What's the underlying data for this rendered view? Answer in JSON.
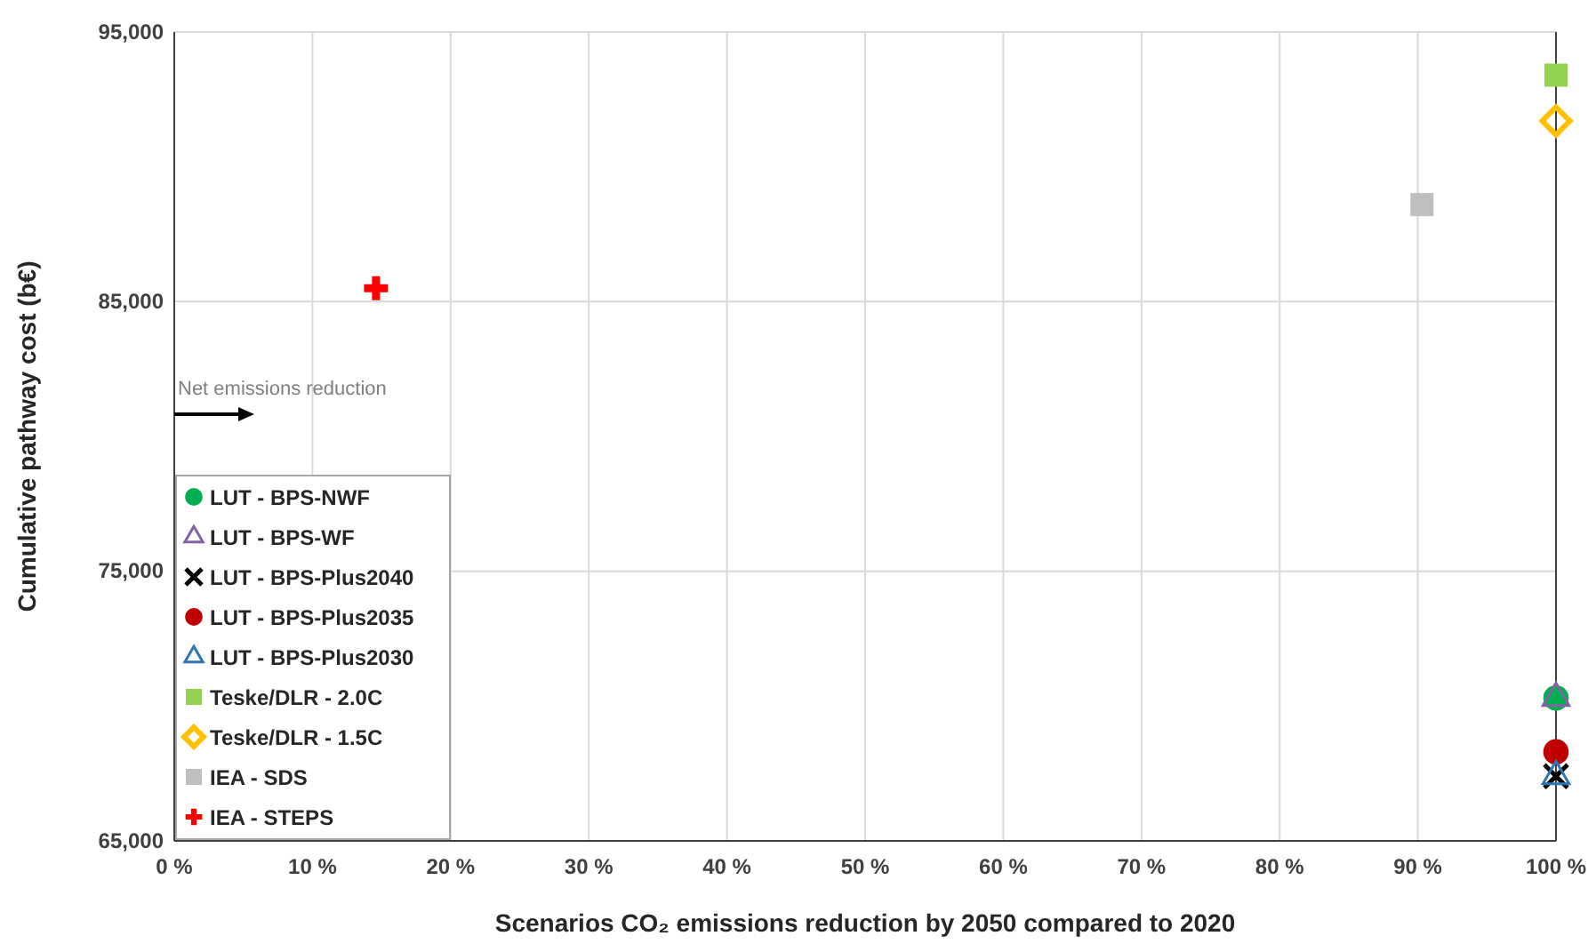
{
  "chart_data": {
    "type": "scatter",
    "xlabel": "Scenarios CO₂ emissions reduction by 2050 compared to 2020",
    "ylabel": "Cumulative pathway cost (b€)",
    "xlim": [
      0,
      100
    ],
    "xticks": [
      {
        "value": 0,
        "label": "0 %"
      },
      {
        "value": 10,
        "label": "10 %"
      },
      {
        "value": 20,
        "label": "20 %"
      },
      {
        "value": 30,
        "label": "30 %"
      },
      {
        "value": 40,
        "label": "40 %"
      },
      {
        "value": 50,
        "label": "50 %"
      },
      {
        "value": 60,
        "label": "60 %"
      },
      {
        "value": 70,
        "label": "70 %"
      },
      {
        "value": 80,
        "label": "80 %"
      },
      {
        "value": 90,
        "label": "90 %"
      },
      {
        "value": 100,
        "label": "100 %"
      }
    ],
    "ylim": [
      65000,
      95000
    ],
    "yticks": [
      {
        "value": 65000,
        "label": "65,000"
      },
      {
        "value": 75000,
        "label": "75,000"
      },
      {
        "value": 85000,
        "label": "85,000"
      },
      {
        "value": 95000,
        "label": "95,000"
      }
    ],
    "grid": true,
    "legend": "bottom left",
    "annotations": [
      "Net emissions reduction"
    ],
    "series": [
      {
        "name": "LUT - BPS-NWF",
        "color": "#00b050",
        "marker": "circle",
        "x": [
          100
        ],
        "values": [
          70300
        ]
      },
      {
        "name": "LUT - BPS-WF",
        "color": "#8064a2",
        "marker": "triangle",
        "x": [
          100
        ],
        "values": [
          70300
        ]
      },
      {
        "name": "LUT - BPS-Plus2040",
        "color": "#000000",
        "marker": "cross",
        "x": [
          100
        ],
        "values": [
          67400
        ]
      },
      {
        "name": "LUT - BPS-Plus2035",
        "color": "#c00000",
        "marker": "circle",
        "x": [
          100
        ],
        "values": [
          68300
        ]
      },
      {
        "name": "LUT - BPS-Plus2030",
        "color": "#2e75b6",
        "marker": "triangle",
        "x": [
          100
        ],
        "values": [
          67400
        ]
      },
      {
        "name": "Teske/DLR - 2.0C",
        "color": "#92d050",
        "marker": "square",
        "x": [
          100
        ],
        "values": [
          93400
        ]
      },
      {
        "name": "Teske/DLR - 1.5C",
        "color": "#ffc000",
        "marker": "diamond",
        "x": [
          100
        ],
        "values": [
          91700
        ]
      },
      {
        "name": "IEA - SDS",
        "color": "#bfbfbf",
        "marker": "square",
        "x": [
          90.3
        ],
        "values": [
          88600
        ]
      },
      {
        "name": "IEA - STEPS",
        "color": "#ff0000",
        "marker": "plus",
        "x": [
          14.6
        ],
        "values": [
          85500
        ]
      }
    ]
  }
}
